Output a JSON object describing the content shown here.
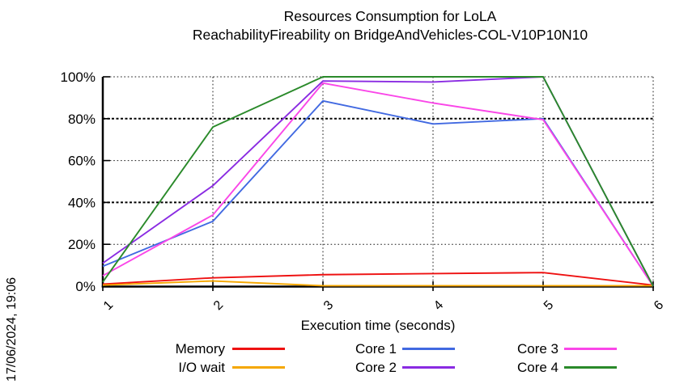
{
  "chart_data": {
    "type": "line",
    "title": "Resources Consumption for LoLA",
    "subtitle": "ReachabilityFireability on BridgeAndVehicles-COL-V10P10N10",
    "xlabel": "Execution time (seconds)",
    "date_stamp": "17/06/2024, 19:06",
    "xlim": [
      1,
      6
    ],
    "ylim": [
      0,
      100
    ],
    "grid": true,
    "legend_position": "bottom",
    "x_ticks": [
      1,
      2,
      3,
      4,
      5,
      6
    ],
    "y_ticks": [
      {
        "value": 0,
        "label": "0%"
      },
      {
        "value": 20,
        "label": "20%"
      },
      {
        "value": 40,
        "label": "40%"
      },
      {
        "value": 60,
        "label": "60%"
      },
      {
        "value": 80,
        "label": "80%"
      },
      {
        "value": 100,
        "label": "100%"
      }
    ],
    "y_major": [
      40,
      80
    ],
    "series": [
      {
        "name": "Memory",
        "color": "#ee1111",
        "x": [
          1,
          2,
          3,
          4,
          5,
          6
        ],
        "values": [
          1,
          4,
          5.5,
          6,
          6.5,
          0.5
        ]
      },
      {
        "name": "I/O wait",
        "color": "#f5a700",
        "x": [
          1,
          2,
          3,
          4,
          5,
          6
        ],
        "values": [
          0.5,
          2.5,
          0.2,
          0.2,
          0.2,
          0.2
        ]
      },
      {
        "name": "Core 1",
        "color": "#4169e1",
        "x": [
          1,
          2,
          3,
          4,
          5,
          6
        ],
        "values": [
          9.5,
          31,
          88.5,
          77.5,
          80,
          0
        ]
      },
      {
        "name": "Core 2",
        "color": "#8a2be2",
        "x": [
          1,
          2,
          3,
          4,
          5,
          6
        ],
        "values": [
          11,
          48,
          98,
          97.5,
          100,
          0
        ]
      },
      {
        "name": "Core 3",
        "color": "#fa46e8",
        "x": [
          1,
          2,
          3,
          4,
          5,
          6
        ],
        "values": [
          5,
          34,
          97,
          87.5,
          79.5,
          0
        ]
      },
      {
        "name": "Core 4",
        "color": "#2a8a2a",
        "x": [
          1,
          2,
          3,
          4,
          5,
          6
        ],
        "values": [
          2,
          76,
          100,
          100,
          100,
          0
        ]
      }
    ]
  }
}
